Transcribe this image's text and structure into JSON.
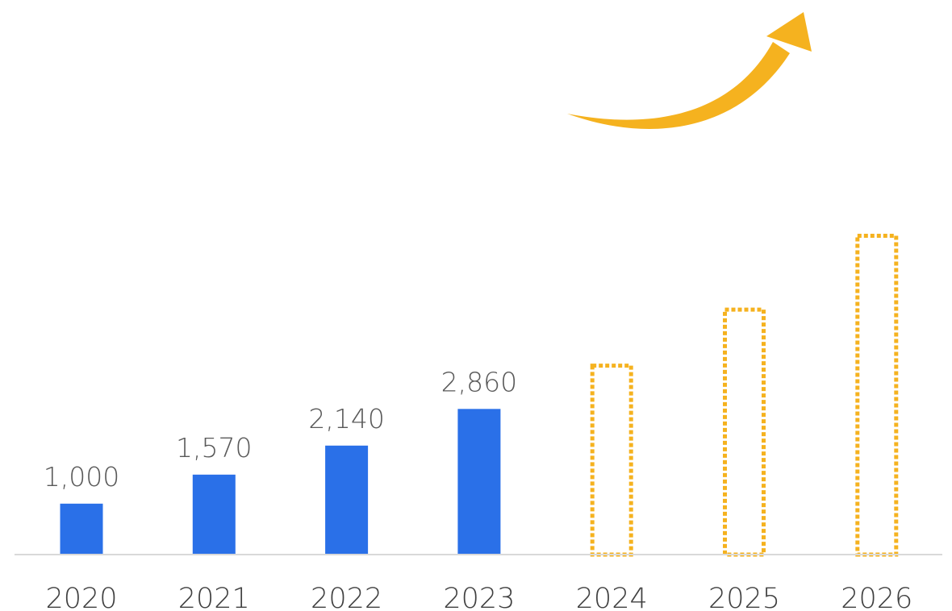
{
  "chart_data": {
    "type": "bar",
    "categories": [
      "2020",
      "2021",
      "2022",
      "2023",
      "2024",
      "2025",
      "2026"
    ],
    "series": [
      {
        "values": [
          1000,
          1570,
          2140,
          2860,
          null,
          null,
          null
        ],
        "data_labels": [
          "1,000",
          "1,570",
          "2,140",
          "2,860",
          "",
          "",
          ""
        ],
        "color": "#2A70E8"
      },
      {
        "style": "dotted-outline",
        "values": [
          null,
          null,
          null,
          null,
          3750,
          4850,
          6300
        ],
        "color": "#F5B21F"
      }
    ],
    "ylim": [
      0,
      6300
    ],
    "grid": false,
    "legend": "none",
    "annotations": [
      {
        "type": "curved-arrow",
        "direction": "up-right",
        "color": "#F5B21F"
      }
    ]
  },
  "colors": {
    "actual": "#2A70E8",
    "projected": "#F5B21F",
    "axis": "#D9D9D9"
  }
}
